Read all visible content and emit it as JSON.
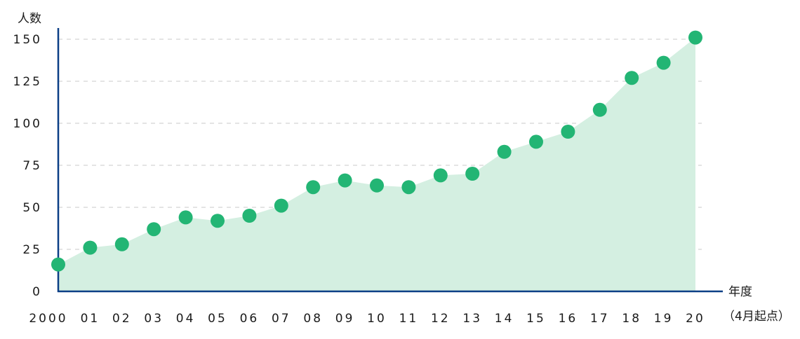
{
  "chart_data": {
    "type": "area",
    "ylabel": "人数",
    "xlabel": "年度",
    "xlabel_note": "（4月起点）",
    "categories": [
      "2000",
      "01",
      "02",
      "03",
      "04",
      "05",
      "06",
      "07",
      "08",
      "09",
      "10",
      "11",
      "12",
      "13",
      "14",
      "15",
      "16",
      "17",
      "18",
      "19",
      "20"
    ],
    "series": [
      {
        "values": [
          16,
          26,
          28,
          37,
          44,
          42,
          45,
          51,
          62,
          66,
          63,
          62,
          69,
          70,
          83,
          89,
          95,
          108,
          127,
          136,
          151
        ]
      }
    ],
    "yticks": [
      0,
      25,
      50,
      75,
      100,
      125,
      150
    ],
    "ytick_labels": [
      "0",
      "25",
      "50",
      "75",
      "100",
      "125",
      "150"
    ],
    "ylim": [
      0,
      150
    ],
    "grid": true,
    "colors": {
      "marker": "#23b574",
      "area": "#d4efe1",
      "axis": "#0b3f86",
      "grid": "#c8c8c8"
    }
  }
}
